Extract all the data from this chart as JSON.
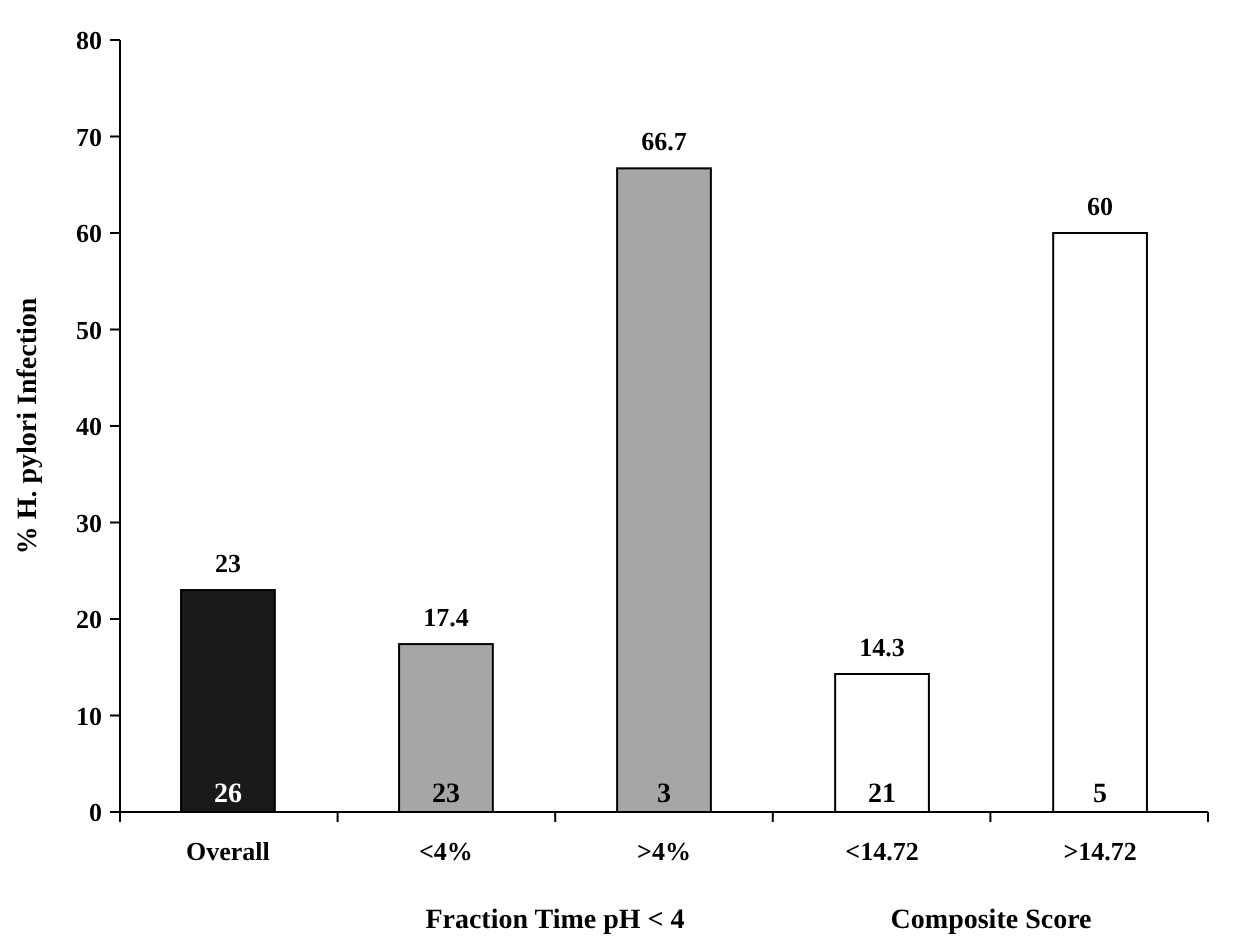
{
  "chart_data": {
    "type": "bar",
    "ylabel": "% H. pylori Infection",
    "categories": [
      "Overall",
      "<4%",
      ">4%",
      "<14.72",
      ">14.72"
    ],
    "values": [
      23,
      17.4,
      66.7,
      14.3,
      60
    ],
    "colors": [
      "#1a1a1a",
      "#a6a6a6",
      "#a6a6a6",
      "#ffffff",
      "#ffffff"
    ],
    "ylim": [
      0,
      80
    ],
    "yticks": [
      0,
      10,
      20,
      30,
      40,
      50,
      60,
      70,
      80
    ],
    "data_labels": true,
    "grid": false,
    "annotations": [
      "26",
      "23",
      "3",
      "21",
      "5",
      "Fraction Time pH < 4",
      "Composite Score"
    ]
  }
}
